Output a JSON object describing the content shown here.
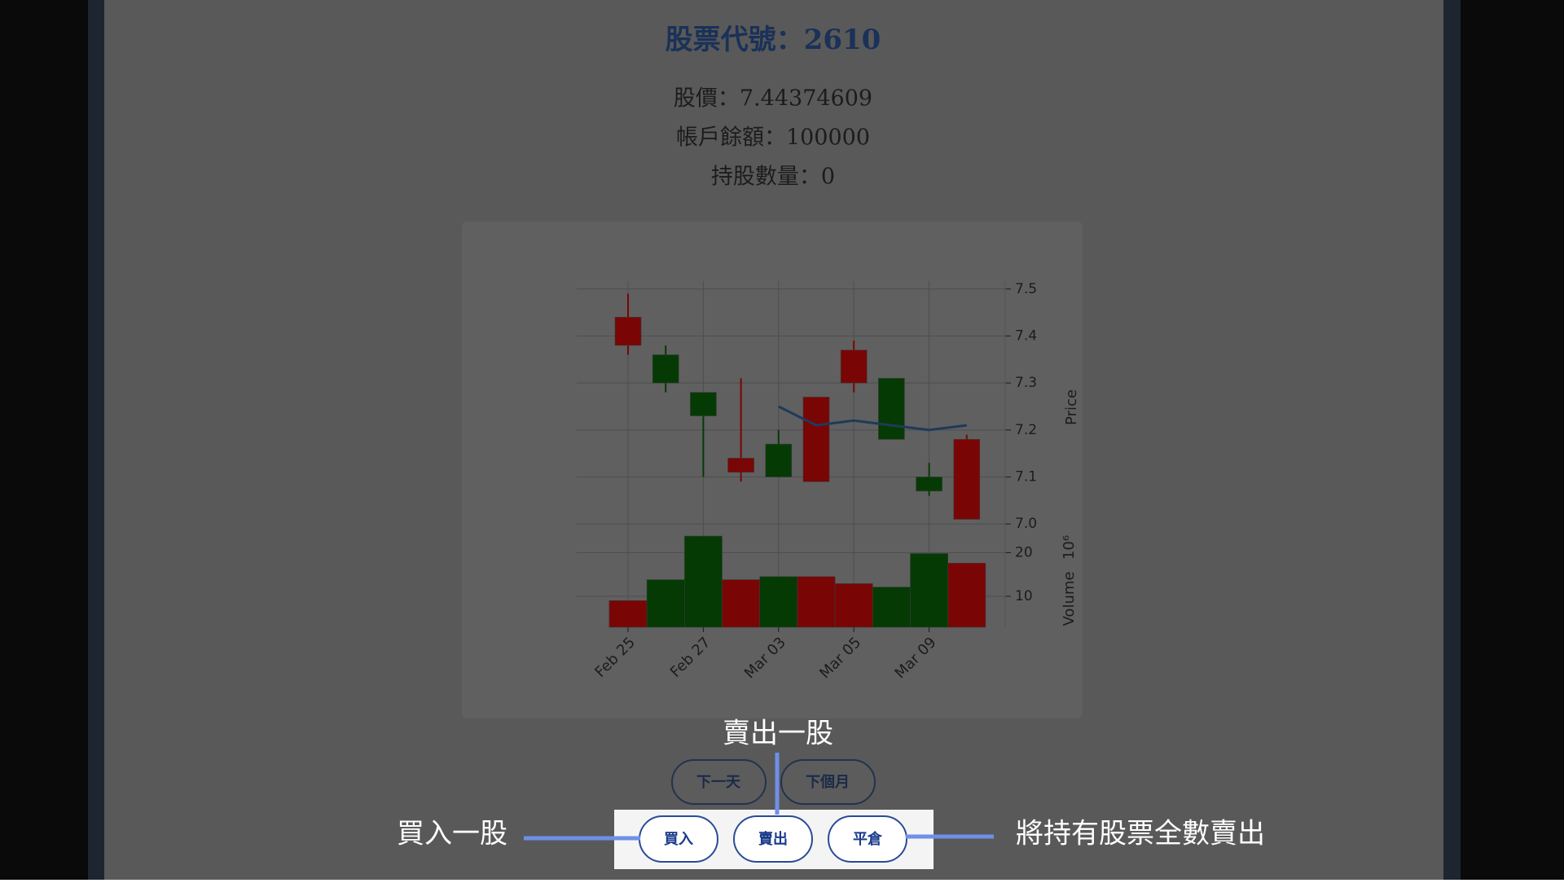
{
  "page": {
    "title": "股票代號：2610",
    "info": [
      "股價：7.44374609",
      "帳戶餘額：100000",
      "持股數量：0"
    ]
  },
  "nav_buttons": [
    "下一天",
    "下個月"
  ],
  "trade_buttons": [
    "買入",
    "賣出",
    "平倉"
  ],
  "annotations": {
    "sell_one": "賣出一股",
    "buy_one": "買入一股",
    "close_all": "將持有股票全數賣出"
  },
  "chart_data": {
    "type": "candlestick",
    "categories": [
      "Feb 25",
      null,
      "Feb 27",
      null,
      "Mar 03",
      null,
      "Mar 05",
      null,
      "Mar 09",
      null
    ],
    "open": [
      7.38,
      7.36,
      7.28,
      7.11,
      7.17,
      7.09,
      7.3,
      7.31,
      7.1,
      7.01
    ],
    "high": [
      7.49,
      7.38,
      7.28,
      7.31,
      7.2,
      7.27,
      7.39,
      7.31,
      7.13,
      7.19
    ],
    "low": [
      7.36,
      7.28,
      7.1,
      7.09,
      7.1,
      7.09,
      7.28,
      7.18,
      7.06,
      7.01
    ],
    "close": [
      7.44,
      7.3,
      7.23,
      7.14,
      7.1,
      7.27,
      7.37,
      7.18,
      7.07,
      7.18
    ],
    "up_color": "#7a0505",
    "down_color": "#053a05",
    "ma": {
      "color": "#1f3a5a",
      "values": [
        null,
        null,
        null,
        null,
        7.25,
        7.21,
        7.22,
        7.21,
        7.2,
        7.21
      ]
    },
    "ylabel": "Price",
    "ylim": [
      6.99,
      7.51
    ],
    "yticks": [
      {
        "value": 7,
        "label": "7.0"
      },
      7.1,
      7.2,
      7.3,
      7.4,
      7.5
    ],
    "volume": {
      "label": "Volume",
      "offset_text": "10⁶",
      "ylim": [
        2.9,
        25.5
      ],
      "yticks": [
        10,
        20
      ],
      "values": [
        9.0,
        13.8,
        23.8,
        13.8,
        14.5,
        14.5,
        12.9,
        12.1,
        19.8,
        17.6
      ]
    },
    "grid": true
  }
}
